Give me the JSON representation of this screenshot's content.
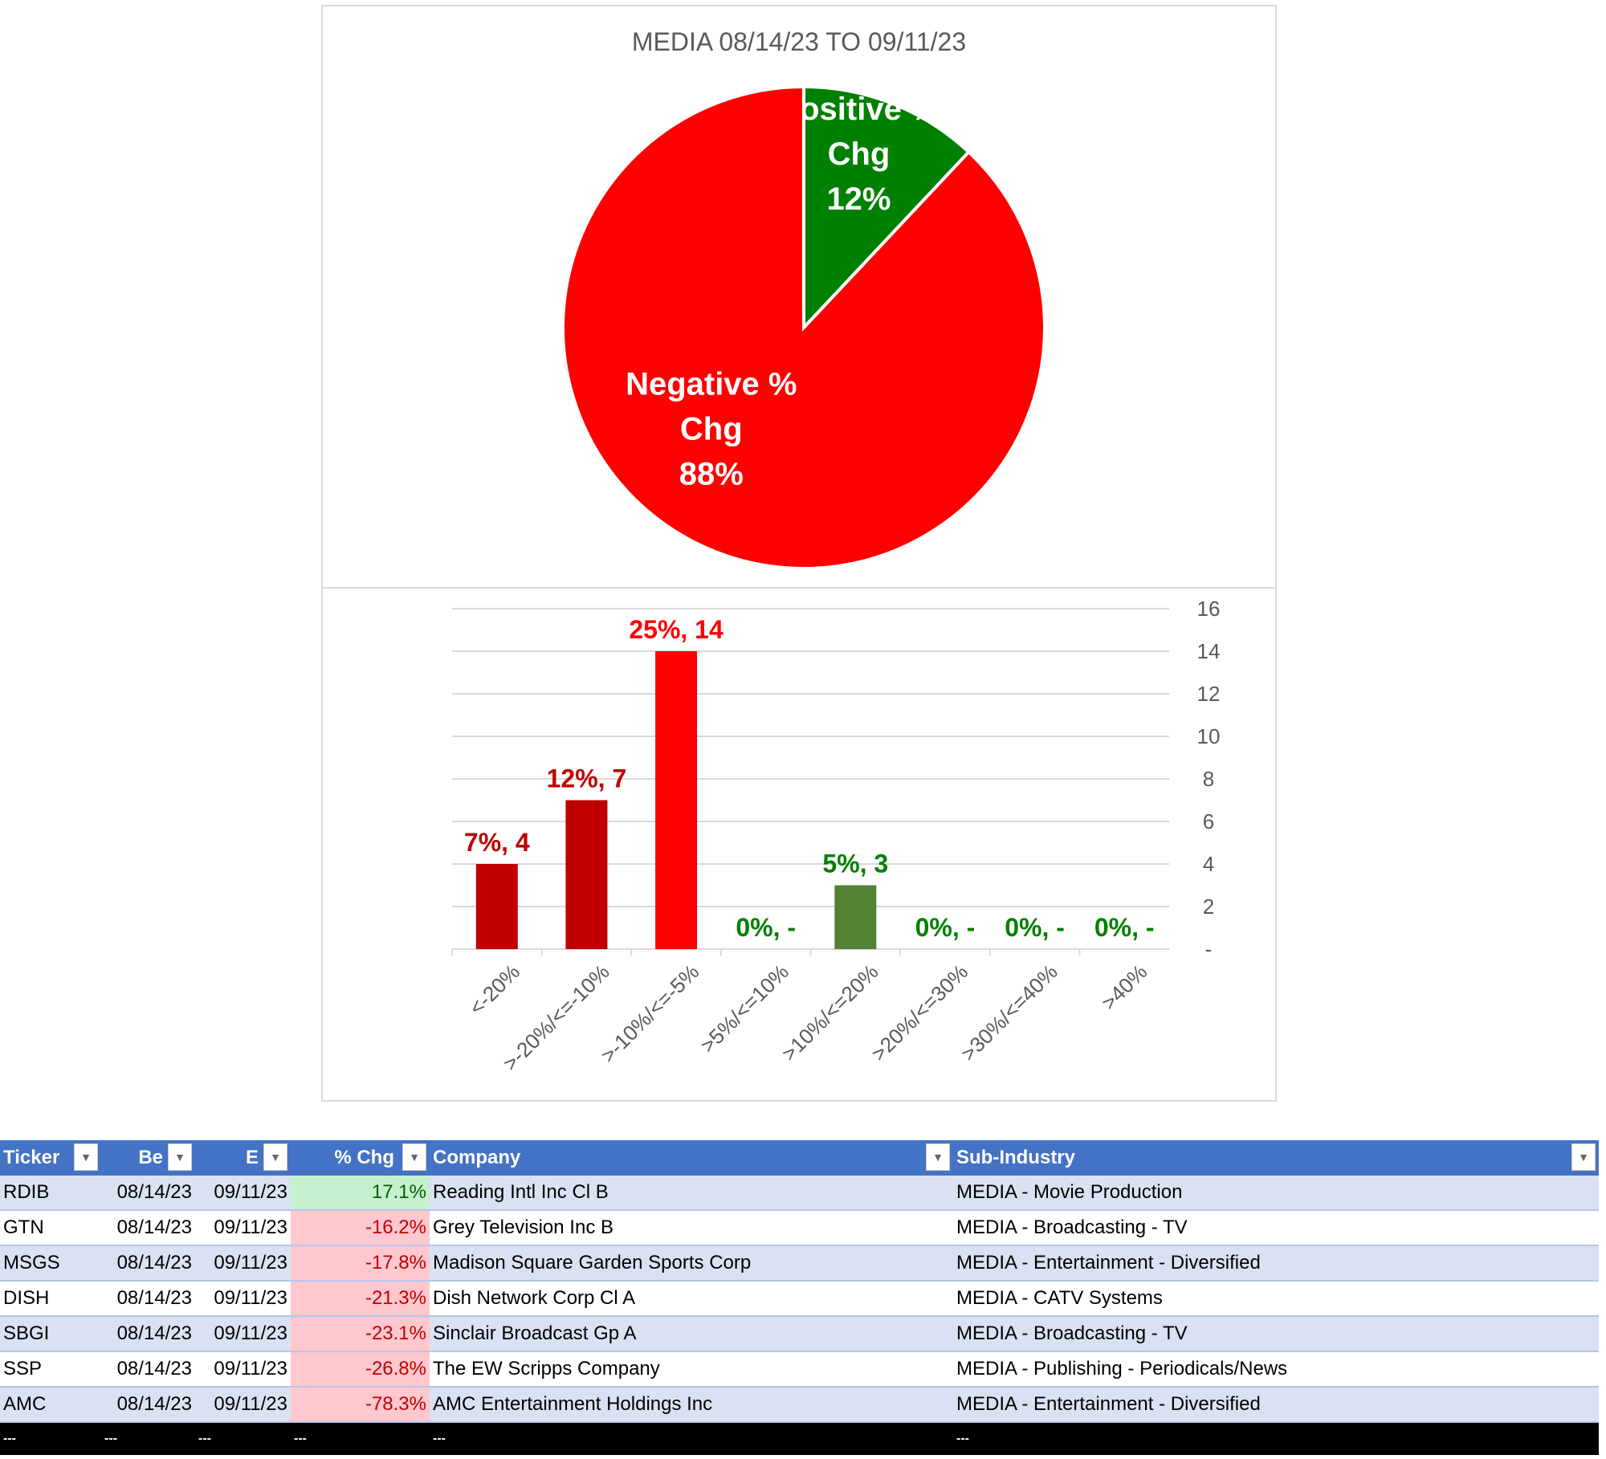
{
  "chart_data": [
    {
      "type": "pie",
      "title": "MEDIA 08/14/23 TO 09/11/23",
      "slices": [
        {
          "label": "Positive % Chg",
          "value": 12,
          "color": "#008000",
          "pct_label": "12%"
        },
        {
          "label": "Negative % Chg",
          "value": 88,
          "color": "#ff0000",
          "pct_label": "88%"
        }
      ]
    },
    {
      "type": "bar",
      "categories": [
        "<-20%",
        ">-20%/<=-10%",
        ">-10%/<=-5%",
        ">5%/<=10%",
        ">10%/<=20%",
        ">20%/<=30%",
        ">30%/<=40%",
        ">40%"
      ],
      "values": [
        4,
        7,
        14,
        0,
        3,
        0,
        0,
        0
      ],
      "data_labels": [
        "7%,  4",
        "12%,  7",
        "25%,  14",
        "0%,  -",
        "5%,  3",
        "0%,  -",
        "0%,  -",
        "0%,  -"
      ],
      "bar_colors": [
        "#c00000",
        "#c00000",
        "#ff0000",
        "#548235",
        "#548235",
        "#548235",
        "#548235",
        "#548235"
      ],
      "label_colors": [
        "#c00000",
        "#c00000",
        "#ff0000",
        "#008000",
        "#008000",
        "#008000",
        "#008000",
        "#008000"
      ],
      "ylim": [
        0,
        16
      ],
      "yticks": [
        "-",
        "2",
        "4",
        "6",
        "8",
        "10",
        "12",
        "14",
        "16"
      ],
      "grid": true
    }
  ],
  "table": {
    "headers": [
      "Ticker",
      "Be",
      "E",
      "% Chg",
      "Company",
      "Sub-Industry"
    ],
    "rows": [
      [
        "RDIB",
        "08/14/23",
        "09/11/23",
        "17.1%",
        "Reading Intl Inc Cl B",
        "MEDIA - Movie Production"
      ],
      [
        "GTN",
        "08/14/23",
        "09/11/23",
        "-16.2%",
        "Grey Television Inc B",
        "MEDIA - Broadcasting - TV"
      ],
      [
        "MSGS",
        "08/14/23",
        "09/11/23",
        "-17.8%",
        "Madison Square Garden Sports Corp",
        "MEDIA - Entertainment - Diversified"
      ],
      [
        "DISH",
        "08/14/23",
        "09/11/23",
        "-21.3%",
        "Dish Network Corp Cl A",
        "MEDIA - CATV Systems"
      ],
      [
        "SBGI",
        "08/14/23",
        "09/11/23",
        "-23.1%",
        "Sinclair Broadcast Gp A",
        "MEDIA - Broadcasting - TV"
      ],
      [
        "SSP",
        "08/14/23",
        "09/11/23",
        "-26.8%",
        "The EW Scripps Company",
        "MEDIA - Publishing - Periodicals/News"
      ],
      [
        "AMC",
        "08/14/23",
        "09/11/23",
        "-78.3%",
        "AMC Entertainment Holdings Inc",
        "MEDIA - Entertainment - Diversified"
      ]
    ],
    "footer": [
      "---",
      "---",
      "---",
      "---",
      "---",
      "---"
    ]
  }
}
